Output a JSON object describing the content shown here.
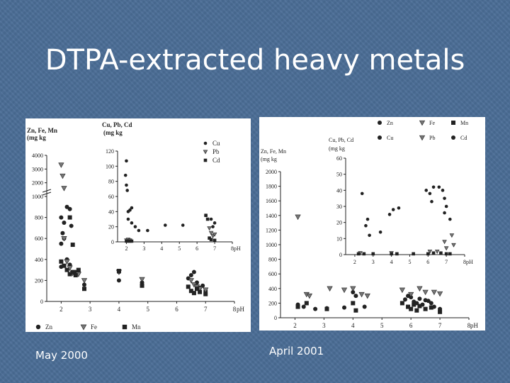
{
  "slide": {
    "title": "DTPA-extracted heavy metals",
    "caption_left": "May 2000",
    "caption_right": "April 2001"
  },
  "colors": {
    "background": "#4a6d96",
    "marker": "#222222",
    "title": "#ffffff"
  },
  "chart_data": [
    {
      "type": "scatter",
      "panel": "May 2000",
      "axes_label_main": "Zn, Fe, Mn (mg kg-1)",
      "axes_label_inset": "Cu, Pb, Cd (mg kg-1)",
      "xlabel": "pH",
      "main": {
        "xlim": [
          1.5,
          8
        ],
        "x_ticks": [
          "2",
          "3",
          "4",
          "5",
          "6",
          "7",
          "8"
        ],
        "y_ticks": [
          "0",
          "200",
          "400",
          "600",
          "800",
          "1000",
          "2000",
          "3000",
          "4000"
        ],
        "legend": [
          "Zn",
          "Fe",
          "Mn"
        ],
        "series": [
          {
            "name": "Zn",
            "marker": "circle",
            "points": [
              [
                2.0,
                550
              ],
              [
                2.05,
                650
              ],
              [
                2.0,
                800
              ],
              [
                2.1,
                750
              ],
              [
                2.2,
                900
              ],
              [
                2.3,
                880
              ],
              [
                2.35,
                720
              ],
              [
                2.1,
                600
              ],
              [
                2.0,
                330
              ],
              [
                2.2,
                400
              ],
              [
                2.3,
                350
              ],
              [
                2.5,
                280
              ],
              [
                2.8,
                160
              ],
              [
                4.0,
                280
              ],
              [
                4.0,
                200
              ],
              [
                4.8,
                180
              ],
              [
                6.5,
                250
              ],
              [
                6.6,
                280
              ],
              [
                6.4,
                220
              ],
              [
                6.7,
                180
              ],
              [
                6.8,
                130
              ],
              [
                7.0,
                100
              ],
              [
                6.9,
                150
              ]
            ]
          },
          {
            "name": "Fe",
            "marker": "triangle",
            "points": [
              [
                2.0,
                3300
              ],
              [
                2.05,
                2500
              ],
              [
                2.1,
                1600
              ],
              [
                2.1,
                600
              ],
              [
                2.2,
                380
              ],
              [
                2.3,
                320
              ],
              [
                2.4,
                270
              ],
              [
                2.6,
                260
              ],
              [
                2.8,
                200
              ],
              [
                4.0,
                280
              ],
              [
                4.8,
                210
              ],
              [
                6.5,
                200
              ],
              [
                6.6,
                160
              ],
              [
                6.7,
                140
              ],
              [
                6.8,
                120
              ],
              [
                7.0,
                110
              ]
            ]
          },
          {
            "name": "Mn",
            "marker": "square",
            "points": [
              [
                2.0,
                380
              ],
              [
                2.1,
                340
              ],
              [
                2.2,
                300
              ],
              [
                2.3,
                260
              ],
              [
                2.4,
                280
              ],
              [
                2.5,
                250
              ],
              [
                2.6,
                300
              ],
              [
                2.3,
                800
              ],
              [
                2.4,
                540
              ],
              [
                2.8,
                120
              ],
              [
                4.0,
                290
              ],
              [
                4.8,
                150
              ],
              [
                6.4,
                140
              ],
              [
                6.5,
                100
              ],
              [
                6.6,
                80
              ],
              [
                6.7,
                120
              ],
              [
                6.8,
                90
              ],
              [
                7.0,
                70
              ]
            ]
          }
        ]
      },
      "inset": {
        "xlim": [
          1.5,
          8
        ],
        "ylim": [
          0,
          120
        ],
        "x_ticks": [
          "2",
          "3",
          "4",
          "5",
          "6",
          "7",
          "8"
        ],
        "y_ticks": [
          "0",
          "20",
          "40",
          "60",
          "80",
          "100",
          "120"
        ],
        "legend": [
          "Cu",
          "Pb",
          "Cd"
        ],
        "series": [
          {
            "name": "Cu",
            "marker": "circle",
            "points": [
              [
                2.0,
                107
              ],
              [
                1.95,
                88
              ],
              [
                2.0,
                75
              ],
              [
                2.05,
                68
              ],
              [
                2.1,
                40
              ],
              [
                2.2,
                42
              ],
              [
                2.3,
                45
              ],
              [
                2.1,
                30
              ],
              [
                2.3,
                25
              ],
              [
                2.5,
                20
              ],
              [
                2.7,
                15
              ],
              [
                3.2,
                15
              ],
              [
                4.2,
                22
              ],
              [
                5.2,
                22
              ],
              [
                6.5,
                35
              ],
              [
                6.8,
                30
              ],
              [
                7.0,
                25
              ],
              [
                6.9,
                20
              ]
            ]
          },
          {
            "name": "Pb",
            "marker": "triangle",
            "points": [
              [
                2.0,
                2
              ],
              [
                2.1,
                3
              ],
              [
                2.2,
                2
              ],
              [
                6.7,
                18
              ],
              [
                6.8,
                12
              ],
              [
                6.9,
                8
              ],
              [
                7.0,
                10
              ]
            ]
          },
          {
            "name": "Cd",
            "marker": "square",
            "points": [
              [
                2.0,
                1
              ],
              [
                2.1,
                1
              ],
              [
                2.2,
                1
              ],
              [
                2.3,
                1
              ],
              [
                6.5,
                35
              ],
              [
                6.6,
                30
              ],
              [
                6.7,
                5
              ],
              [
                6.8,
                3
              ],
              [
                7.0,
                2
              ]
            ]
          }
        ]
      }
    },
    {
      "type": "scatter",
      "panel": "April 2001",
      "axes_label_main": "Zn, Fe, Mn (mg kg-1)",
      "axes_label_inset": "Cu, Pb, Cd (mg kg-1)",
      "xlabel": "pH",
      "main": {
        "xlim": [
          1.5,
          8
        ],
        "ylim": [
          0,
          2000
        ],
        "x_ticks": [
          "2",
          "3",
          "4",
          "5",
          "6",
          "7",
          "8"
        ],
        "y_ticks": [
          "0",
          "200",
          "400",
          "600",
          "800",
          "1000",
          "1200",
          "1400",
          "1600",
          "1800",
          "2000"
        ],
        "legend": [
          "Zn",
          "Fe",
          "Mn"
        ],
        "series": [
          {
            "name": "Zn",
            "marker": "circle",
            "points": [
              [
                2.1,
                180
              ],
              [
                2.3,
                150
              ],
              [
                2.7,
                120
              ],
              [
                3.1,
                130
              ],
              [
                3.7,
                140
              ],
              [
                4.0,
                350
              ],
              [
                4.1,
                300
              ],
              [
                4.4,
                150
              ],
              [
                5.8,
                250
              ],
              [
                5.9,
                300
              ],
              [
                6.0,
                280
              ],
              [
                6.1,
                220
              ],
              [
                6.2,
                200
              ],
              [
                6.3,
                260
              ],
              [
                6.4,
                180
              ],
              [
                6.5,
                240
              ],
              [
                6.6,
                230
              ],
              [
                6.7,
                200
              ],
              [
                6.8,
                150
              ],
              [
                7.0,
                120
              ]
            ]
          },
          {
            "name": "Fe",
            "marker": "triangle",
            "points": [
              [
                2.1,
                1380
              ],
              [
                2.4,
                320
              ],
              [
                2.5,
                300
              ],
              [
                3.2,
                400
              ],
              [
                3.7,
                380
              ],
              [
                4.0,
                400
              ],
              [
                4.3,
                320
              ],
              [
                4.5,
                300
              ],
              [
                5.7,
                380
              ],
              [
                6.0,
                320
              ],
              [
                6.3,
                400
              ],
              [
                6.5,
                350
              ],
              [
                6.8,
                350
              ],
              [
                7.0,
                330
              ]
            ]
          },
          {
            "name": "Mn",
            "marker": "square",
            "points": [
              [
                2.1,
                150
              ],
              [
                2.4,
                200
              ],
              [
                3.1,
                120
              ],
              [
                4.0,
                200
              ],
              [
                4.1,
                100
              ],
              [
                5.7,
                200
              ],
              [
                5.9,
                150
              ],
              [
                6.0,
                120
              ],
              [
                6.1,
                180
              ],
              [
                6.2,
                100
              ],
              [
                6.3,
                160
              ],
              [
                6.5,
                120
              ],
              [
                6.7,
                140
              ],
              [
                7.0,
                80
              ]
            ]
          }
        ]
      },
      "inset": {
        "xlim": [
          1.5,
          8
        ],
        "ylim": [
          0,
          60
        ],
        "x_ticks": [
          "2",
          "3",
          "4",
          "5",
          "6",
          "7",
          "8"
        ],
        "y_ticks": [
          "0",
          "10",
          "20",
          "30",
          "40",
          "50",
          "60"
        ],
        "legend": [
          "Cu",
          "Pb",
          "Cd"
        ],
        "series": [
          {
            "name": "Cu",
            "marker": "circle",
            "points": [
              [
                2.4,
                38
              ],
              [
                2.6,
                18
              ],
              [
                2.7,
                22
              ],
              [
                2.8,
                12
              ],
              [
                3.4,
                14
              ],
              [
                3.9,
                25
              ],
              [
                4.1,
                28
              ],
              [
                4.4,
                29
              ],
              [
                5.9,
                40
              ],
              [
                6.1,
                38
              ],
              [
                6.3,
                42
              ],
              [
                6.2,
                33
              ],
              [
                6.6,
                42
              ],
              [
                6.8,
                40
              ],
              [
                6.9,
                35
              ],
              [
                7.0,
                30
              ],
              [
                6.9,
                26
              ],
              [
                7.2,
                22
              ]
            ]
          },
          {
            "name": "Pb",
            "marker": "triangle",
            "points": [
              [
                2.3,
                1
              ],
              [
                4.0,
                1
              ],
              [
                6.1,
                2
              ],
              [
                6.5,
                2
              ],
              [
                6.9,
                8
              ],
              [
                7.0,
                4
              ],
              [
                7.3,
                12
              ],
              [
                7.4,
                6
              ]
            ]
          },
          {
            "name": "Cd",
            "marker": "square",
            "points": [
              [
                2.2,
                0.5
              ],
              [
                2.5,
                0.5
              ],
              [
                3.0,
                0.5
              ],
              [
                4.0,
                0.5
              ],
              [
                4.3,
                0.5
              ],
              [
                5.2,
                0.5
              ],
              [
                6.0,
                0.5
              ],
              [
                6.3,
                1
              ],
              [
                6.7,
                1
              ],
              [
                7.0,
                0.5
              ],
              [
                7.2,
                0.5
              ]
            ]
          }
        ]
      }
    }
  ]
}
